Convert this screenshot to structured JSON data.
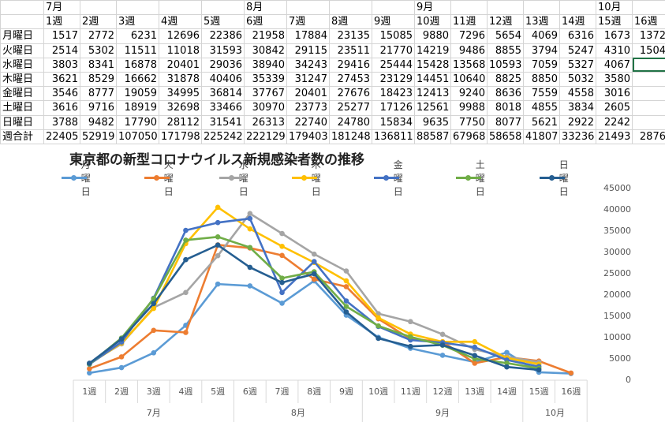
{
  "sheet": {
    "month_row": [
      "7月",
      "",
      "",
      "",
      "",
      "8月",
      "",
      "",
      "",
      "9月",
      "",
      "",
      "",
      "",
      "10月",
      ""
    ],
    "week_row": [
      "1週",
      "2週",
      "3週",
      "4週",
      "5週",
      "6週",
      "7週",
      "8週",
      "9週",
      "10週",
      "11週",
      "12週",
      "13週",
      "14週",
      "15週",
      "16週"
    ],
    "rows": [
      {
        "label": "月曜日",
        "values": [
          "1517",
          "2772",
          "6231",
          "12696",
          "22386",
          "21958",
          "17884",
          "23135",
          "15085",
          "9880",
          "7296",
          "5654",
          "4069",
          "6316",
          "1673",
          "1372"
        ]
      },
      {
        "label": "火曜日",
        "values": [
          "2514",
          "5302",
          "11511",
          "11018",
          "31593",
          "30842",
          "29115",
          "23511",
          "21770",
          "14219",
          "9486",
          "8855",
          "3794",
          "5247",
          "4310",
          "1504"
        ]
      },
      {
        "label": "水曜日",
        "values": [
          "3803",
          "8341",
          "16878",
          "20401",
          "29036",
          "38940",
          "34243",
          "29416",
          "25444",
          "15428",
          "13568",
          "10593",
          "7059",
          "5327",
          "4067",
          ""
        ]
      },
      {
        "label": "木曜日",
        "values": [
          "3621",
          "8529",
          "16662",
          "31878",
          "40406",
          "35339",
          "31247",
          "27453",
          "23129",
          "14451",
          "10640",
          "8825",
          "8850",
          "5032",
          "3580",
          ""
        ]
      },
      {
        "label": "金曜日",
        "values": [
          "3546",
          "8777",
          "19059",
          "34995",
          "36814",
          "37767",
          "20401",
          "27676",
          "18423",
          "12413",
          "9240",
          "8636",
          "7559",
          "4558",
          "3016",
          ""
        ]
      },
      {
        "label": "土曜日",
        "values": [
          "3616",
          "9716",
          "18919",
          "32698",
          "33466",
          "30970",
          "23773",
          "25277",
          "17126",
          "12561",
          "9988",
          "8018",
          "4855",
          "3834",
          "2605",
          ""
        ]
      },
      {
        "label": "日曜日",
        "values": [
          "3788",
          "9482",
          "17790",
          "28112",
          "31541",
          "26313",
          "22740",
          "24780",
          "15834",
          "9635",
          "7750",
          "8077",
          "5621",
          "2922",
          "2242",
          ""
        ]
      },
      {
        "label": "週合計",
        "values": [
          "22405",
          "52919",
          "107050",
          "171798",
          "225242",
          "222129",
          "179403",
          "181248",
          "136811",
          "88587",
          "67968",
          "58658",
          "41807",
          "33236",
          "21493",
          "2876"
        ]
      }
    ]
  },
  "chart": {
    "title": "東京都の新型コロナウイルス新規感染者数の推移"
  },
  "chart_data": {
    "type": "line",
    "title": "東京都の新型コロナウイルス新規感染者数の推移",
    "xlabel": "",
    "ylabel": "",
    "ylim": [
      0,
      45000
    ],
    "yticks": [
      0,
      5000,
      10000,
      15000,
      20000,
      25000,
      30000,
      35000,
      40000,
      45000
    ],
    "yaxis_side": "right",
    "legend_position": "top",
    "grid": false,
    "categories": [
      "1週",
      "2週",
      "3週",
      "4週",
      "5週",
      "6週",
      "7週",
      "8週",
      "9週",
      "10週",
      "11週",
      "12週",
      "13週",
      "14週",
      "15週",
      "16週"
    ],
    "month_groups": [
      {
        "label": "7月",
        "span": 5
      },
      {
        "label": "8月",
        "span": 4
      },
      {
        "label": "9月",
        "span": 5
      },
      {
        "label": "10月",
        "span": 2
      }
    ],
    "series": [
      {
        "name": "月曜日",
        "color": "#5B9BD5",
        "values": [
          1517,
          2772,
          6231,
          12696,
          22386,
          21958,
          17884,
          23135,
          15085,
          9880,
          7296,
          5654,
          4069,
          6316,
          1673,
          1372
        ]
      },
      {
        "name": "火曜日",
        "color": "#ED7D31",
        "values": [
          2514,
          5302,
          11511,
          11018,
          31593,
          30842,
          29115,
          23511,
          21770,
          14219,
          9486,
          8855,
          3794,
          5247,
          4310,
          1504
        ]
      },
      {
        "name": "水曜日",
        "color": "#A5A5A5",
        "values": [
          3803,
          8341,
          16878,
          20401,
          29036,
          38940,
          34243,
          29416,
          25444,
          15428,
          13568,
          10593,
          7059,
          5327,
          4067,
          null
        ]
      },
      {
        "name": "木曜日",
        "color": "#FFC000",
        "values": [
          3621,
          8529,
          16662,
          31878,
          40406,
          35339,
          31247,
          27453,
          23129,
          14451,
          10640,
          8825,
          8850,
          5032,
          3580,
          null
        ]
      },
      {
        "name": "金曜日",
        "color": "#4472C4",
        "values": [
          3546,
          8777,
          19059,
          34995,
          36814,
          37767,
          20401,
          27676,
          18423,
          12413,
          9240,
          8636,
          7559,
          4558,
          3016,
          null
        ]
      },
      {
        "name": "土曜日",
        "color": "#70AD47",
        "values": [
          3616,
          9716,
          18919,
          32698,
          33466,
          30970,
          23773,
          25277,
          17126,
          12561,
          9988,
          8018,
          4855,
          3834,
          2605,
          null
        ]
      },
      {
        "name": "日曜日",
        "color": "#255E91",
        "values": [
          3788,
          9482,
          17790,
          28112,
          31541,
          26313,
          22740,
          24780,
          15834,
          9635,
          7750,
          8077,
          5621,
          2922,
          2242,
          null
        ]
      }
    ]
  }
}
